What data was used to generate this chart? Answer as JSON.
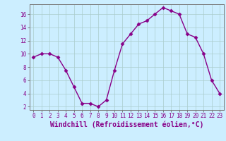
{
  "x": [
    0,
    1,
    2,
    3,
    4,
    5,
    6,
    7,
    8,
    9,
    10,
    11,
    12,
    13,
    14,
    15,
    16,
    17,
    18,
    19,
    20,
    21,
    22,
    23
  ],
  "y": [
    9.5,
    10,
    10,
    9.5,
    7.5,
    5,
    2.5,
    2.5,
    2,
    3,
    7.5,
    11.5,
    13,
    14.5,
    15,
    16,
    17,
    16.5,
    16,
    13,
    12.5,
    10,
    6,
    4
  ],
  "line_color": "#880088",
  "marker": "D",
  "marker_size": 2.5,
  "bg_color": "#cceeff",
  "grid_color": "#aacccc",
  "xlabel": "Windchill (Refroidissement éolien,°C)",
  "xlabel_fontsize": 7,
  "ylabel_ticks": [
    2,
    4,
    6,
    8,
    10,
    12,
    14,
    16
  ],
  "xtick_labels": [
    "0",
    "1",
    "2",
    "3",
    "4",
    "5",
    "6",
    "7",
    "8",
    "9",
    "10",
    "11",
    "12",
    "13",
    "14",
    "15",
    "16",
    "17",
    "18",
    "19",
    "20",
    "21",
    "22",
    "23"
  ],
  "ylim": [
    1.5,
    17.5
  ],
  "xlim": [
    -0.5,
    23.5
  ],
  "tick_fontsize": 5.5,
  "line_width": 1.0
}
